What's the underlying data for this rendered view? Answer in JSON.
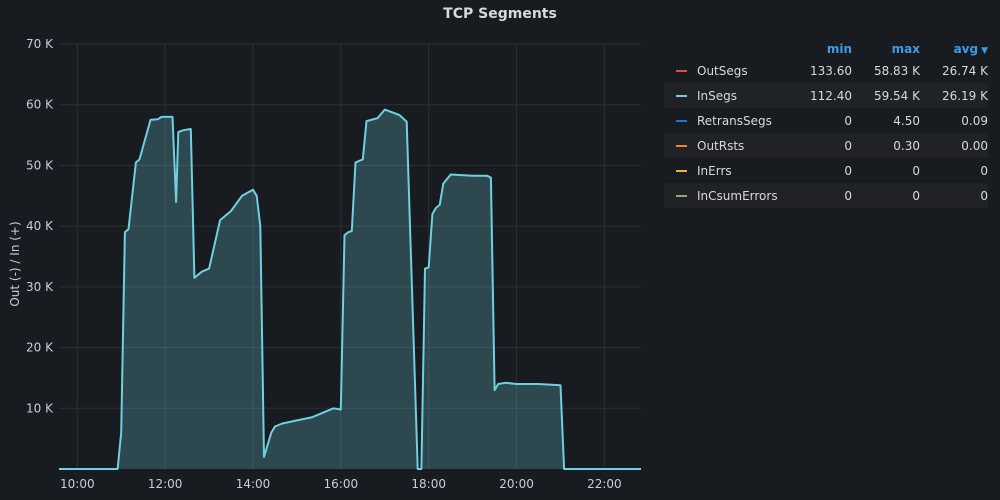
{
  "chart_data": {
    "type": "area",
    "title": "TCP Segments",
    "ylabel": "Out (-) / In (+)",
    "ylim": [
      0,
      70000
    ],
    "xlim": [
      "09:35",
      "22:50"
    ],
    "y_ticks": [
      10000,
      20000,
      30000,
      40000,
      50000,
      60000,
      70000
    ],
    "y_tick_labels": [
      "10 K",
      "20 K",
      "30 K",
      "40 K",
      "50 K",
      "60 K",
      "70 K"
    ],
    "x_ticks": [
      "10:00",
      "12:00",
      "14:00",
      "16:00",
      "18:00",
      "20:00",
      "22:00"
    ],
    "grid": true,
    "legend_position": "right",
    "series": [
      {
        "name": "InSegs",
        "color": "#6ed0e0",
        "x": [
          "09:35",
          "10:55",
          "11:00",
          "11:05",
          "11:10",
          "11:20",
          "11:25",
          "11:40",
          "11:50",
          "11:55",
          "12:10",
          "12:15",
          "12:18",
          "12:25",
          "12:35",
          "12:40",
          "12:50",
          "13:00",
          "13:15",
          "13:30",
          "13:45",
          "14:00",
          "14:05",
          "14:10",
          "14:15",
          "14:25",
          "14:30",
          "14:40",
          "15:00",
          "15:20",
          "15:40",
          "15:50",
          "16:00",
          "16:05",
          "16:10",
          "16:15",
          "16:20",
          "16:30",
          "16:35",
          "16:50",
          "17:00",
          "17:20",
          "17:30",
          "17:45",
          "17:50",
          "17:55",
          "18:00",
          "18:05",
          "18:10",
          "18:15",
          "18:20",
          "18:30",
          "19:00",
          "19:20",
          "19:25",
          "19:30",
          "19:35",
          "19:45",
          "20:00",
          "20:30",
          "21:00",
          "21:05",
          "21:10",
          "22:50"
        ],
        "values": [
          0,
          0,
          6000,
          39000,
          39500,
          50500,
          51000,
          57500,
          57600,
          58000,
          58000,
          44000,
          55500,
          55800,
          56000,
          31500,
          32500,
          33000,
          41000,
          42500,
          45000,
          46000,
          45000,
          40000,
          2000,
          6000,
          7000,
          7500,
          8000,
          8500,
          9500,
          10000,
          9800,
          38500,
          39000,
          39200,
          50500,
          51000,
          57300,
          57800,
          59200,
          58300,
          57200,
          0,
          0,
          33000,
          33200,
          42000,
          43000,
          43500,
          47000,
          48500,
          48300,
          48300,
          48000,
          13000,
          14000,
          14200,
          14000,
          14000,
          13800,
          0,
          0,
          0
        ]
      },
      {
        "name": "OutSegs",
        "color": "#e24d42",
        "x": [],
        "values": []
      },
      {
        "name": "RetransSegs",
        "color": "#1f78c1",
        "x": [],
        "values": []
      },
      {
        "name": "OutRsts",
        "color": "#ef843c",
        "x": [],
        "values": []
      },
      {
        "name": "InErrs",
        "color": "#eab839",
        "x": [],
        "values": []
      },
      {
        "name": "InCsumErrors",
        "color": "#7eb26d",
        "x": [],
        "values": []
      }
    ]
  },
  "legend": {
    "headers": {
      "min": "min",
      "max": "max",
      "avg": "avg"
    },
    "sort_icon": "chevron-down-icon",
    "rows": [
      {
        "name": "OutSegs",
        "color": "#e24d42",
        "min": "133.60",
        "max": "58.83 K",
        "avg": "26.74 K"
      },
      {
        "name": "InSegs",
        "color": "#6ed0e0",
        "min": "112.40",
        "max": "59.54 K",
        "avg": "26.19 K"
      },
      {
        "name": "RetransSegs",
        "color": "#1f78c1",
        "min": "0",
        "max": "4.50",
        "avg": "0.09"
      },
      {
        "name": "OutRsts",
        "color": "#ef843c",
        "min": "0",
        "max": "0.30",
        "avg": "0.00"
      },
      {
        "name": "InErrs",
        "color": "#eab839",
        "min": "0",
        "max": "0",
        "avg": "0"
      },
      {
        "name": "InCsumErrors",
        "color": "#7eb26d",
        "min": "0",
        "max": "0",
        "avg": "0"
      }
    ]
  }
}
